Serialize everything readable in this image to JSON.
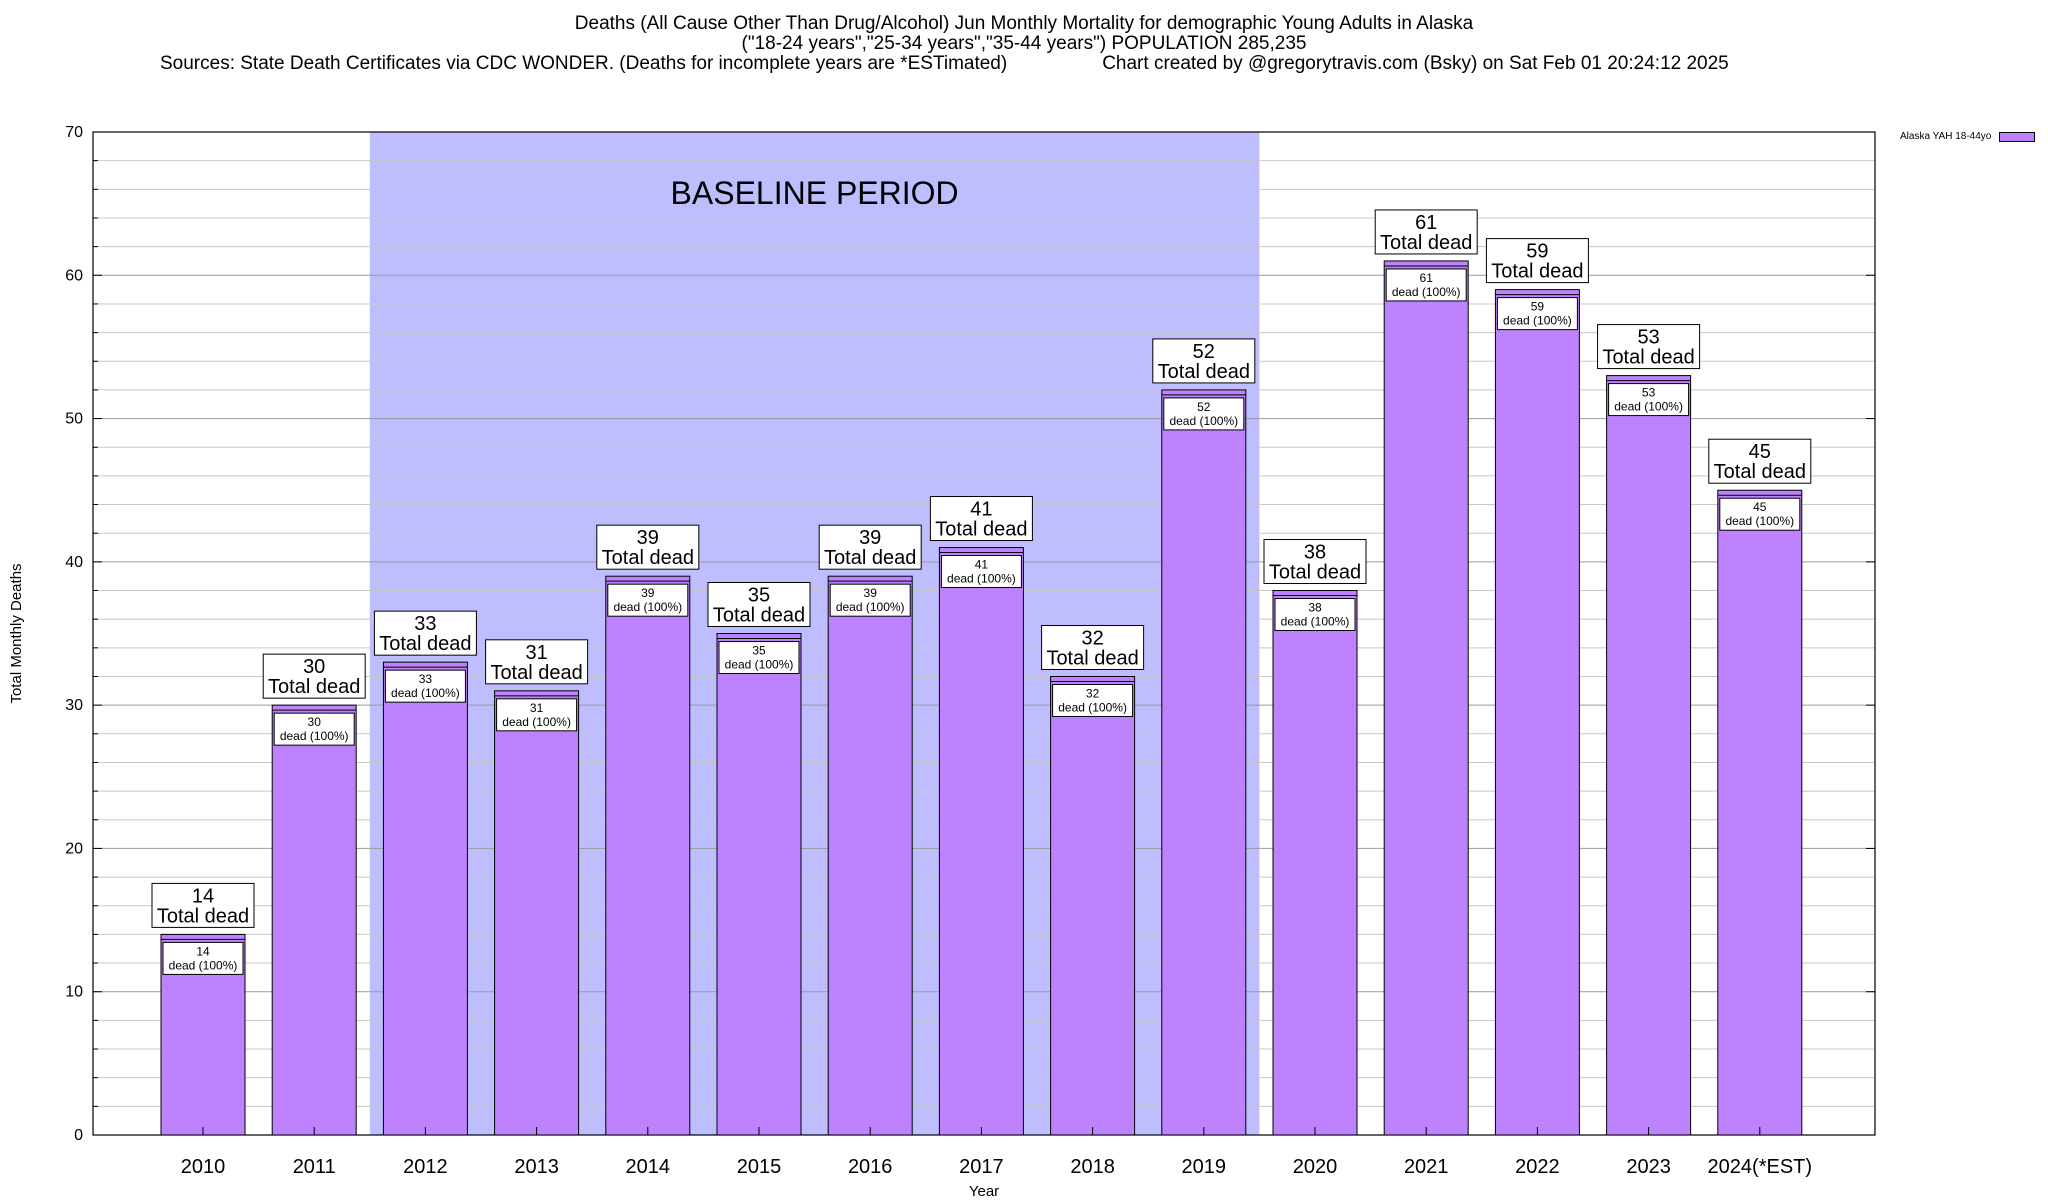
{
  "header": {
    "title": "Deaths (All Cause Other Than Drug/Alcohol) Jun Monthly Mortality for demographic Young Adults in Alaska",
    "subtitle": "(\"18-24 years\",\"25-34 years\",\"35-44 years\") POPULATION 285,235",
    "sources": "Sources: State Death Certificates via CDC WONDER. (Deaths for incomplete years are *ESTimated)",
    "credit": "Chart created by @gregorytravis.com (Bsky) on Sat Feb 01 20:24:12 2025"
  },
  "legend": {
    "label": "Alaska YAH 18-44yo"
  },
  "chart_data": {
    "type": "bar",
    "xlabel": "Year",
    "ylabel": "Total Monthly Deaths",
    "ylim": [
      0,
      70
    ],
    "yticks": [
      0,
      10,
      20,
      30,
      40,
      50,
      60,
      70
    ],
    "grid": true,
    "legend_position": "top-right",
    "categories": [
      "2010",
      "2011",
      "2012",
      "2013",
      "2014",
      "2015",
      "2016",
      "2017",
      "2018",
      "2019",
      "2020",
      "2021",
      "2022",
      "2023",
      "2024(*EST)"
    ],
    "series": [
      {
        "name": "Alaska YAH 18-44yo",
        "color": "#bf82ff",
        "values": [
          14,
          30,
          33,
          31,
          39,
          35,
          39,
          41,
          32,
          52,
          38,
          61,
          59,
          53,
          45
        ]
      }
    ],
    "top_label_suffix": "Total dead",
    "inner_label_suffix": "dead (100%)",
    "baseline_period": {
      "label": "BASELINE PERIOD",
      "from": "2012",
      "to": "2019",
      "color": "#bebeff"
    }
  }
}
